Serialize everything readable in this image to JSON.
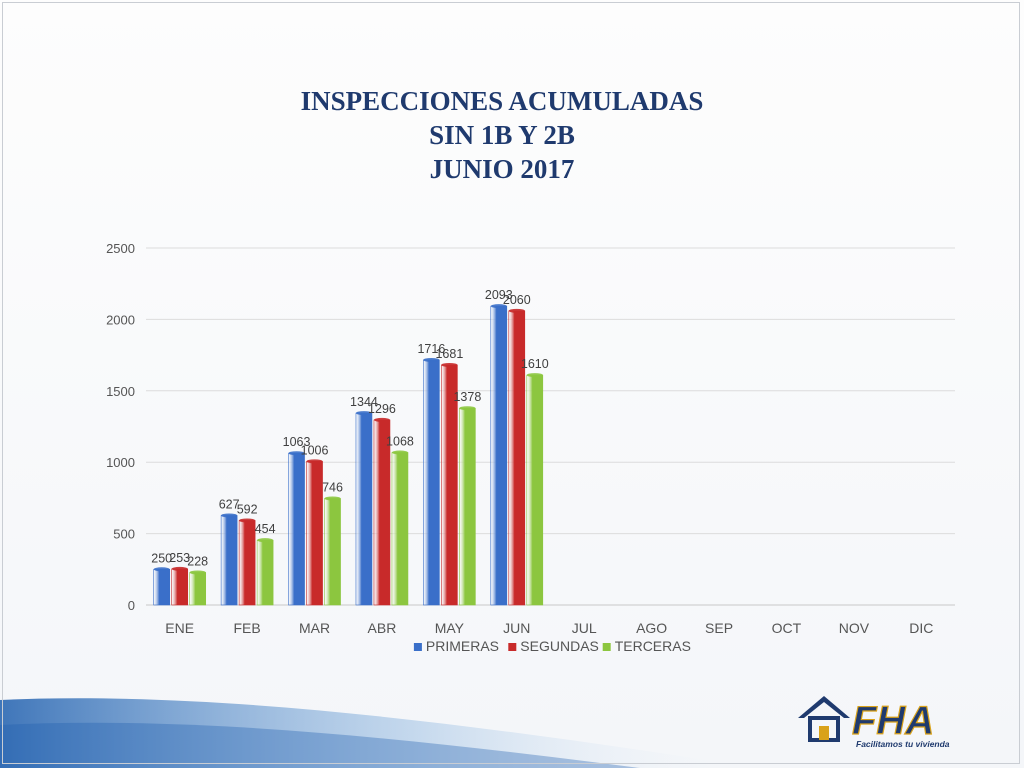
{
  "title": {
    "line1": "INSPECCIONES ACUMULADAS",
    "line2": "SIN 1B Y 2B",
    "line3": "JUNIO 2017"
  },
  "logo": {
    "name": "FHA",
    "tagline": "Facilitamos tu vivienda"
  },
  "chart_data": {
    "type": "bar",
    "categories": [
      "ENE",
      "FEB",
      "MAR",
      "ABR",
      "MAY",
      "JUN",
      "JUL",
      "AGO",
      "SEP",
      "OCT",
      "NOV",
      "DIC"
    ],
    "series": [
      {
        "name": "PRIMERAS",
        "color": "#3a6fc9",
        "values": [
          250,
          627,
          1063,
          1344,
          1716,
          2093,
          null,
          null,
          null,
          null,
          null,
          null
        ]
      },
      {
        "name": "SEGUNDAS",
        "color": "#c82a2a",
        "values": [
          253,
          592,
          1006,
          1296,
          1681,
          2060,
          null,
          null,
          null,
          null,
          null,
          null
        ]
      },
      {
        "name": "TERCERAS",
        "color": "#8cc63f",
        "values": [
          228,
          454,
          746,
          1068,
          1378,
          1610,
          null,
          null,
          null,
          null,
          null,
          null
        ]
      }
    ],
    "ylim": [
      0,
      2500
    ],
    "yticks": [
      0,
      500,
      1000,
      1500,
      2000,
      2500
    ],
    "grid": true,
    "legend": "bottom",
    "data_labels": true
  }
}
